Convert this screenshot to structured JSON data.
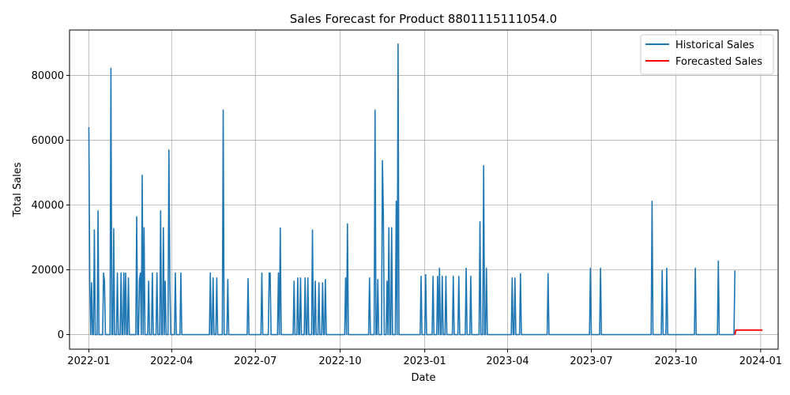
{
  "chart_data": {
    "type": "line",
    "title": "Sales Forecast for Product 8801115111054.0",
    "xlabel": "Date",
    "ylabel": "Total Sales",
    "x_range": [
      "2021-12-11",
      "2024-01-20"
    ],
    "ylim": [
      -4500,
      94000
    ],
    "x_ticks": [
      "2022-01",
      "2022-04",
      "2022-07",
      "2022-10",
      "2023-01",
      "2023-04",
      "2023-07",
      "2023-10",
      "2024-01"
    ],
    "y_ticks": [
      0,
      20000,
      40000,
      60000,
      80000
    ],
    "y_tick_labels": [
      "0",
      "20000",
      "40000",
      "60000",
      "80000"
    ],
    "grid": true,
    "legend_position": "top-right",
    "series": [
      {
        "name": "Historical Sales",
        "color": "#1f77b4",
        "spikes": [
          [
            "2022-01-01",
            64000
          ],
          [
            "2022-01-02",
            16000
          ],
          [
            "2022-01-04",
            16000
          ],
          [
            "2022-01-07",
            32300
          ],
          [
            "2022-01-11",
            38200
          ],
          [
            "2022-01-17",
            19000
          ],
          [
            "2022-01-18",
            16500
          ],
          [
            "2022-01-25",
            82200
          ],
          [
            "2022-01-28",
            32700
          ],
          [
            "2022-02-01",
            19000
          ],
          [
            "2022-02-05",
            19000
          ],
          [
            "2022-02-08",
            19000
          ],
          [
            "2022-02-10",
            19000
          ],
          [
            "2022-02-13",
            17500
          ],
          [
            "2022-02-22",
            36400
          ],
          [
            "2022-02-25",
            17000
          ],
          [
            "2022-02-26",
            19000
          ],
          [
            "2022-02-28",
            49200
          ],
          [
            "2022-03-02",
            33000
          ],
          [
            "2022-03-07",
            16500
          ],
          [
            "2022-03-11",
            19000
          ],
          [
            "2022-03-16",
            19000
          ],
          [
            "2022-03-20",
            38200
          ],
          [
            "2022-03-23",
            33000
          ],
          [
            "2022-03-25",
            16500
          ],
          [
            "2022-03-29",
            57000
          ],
          [
            "2022-03-30",
            16500
          ],
          [
            "2022-04-05",
            19000
          ],
          [
            "2022-04-11",
            19000
          ],
          [
            "2022-05-13",
            19000
          ],
          [
            "2022-05-16",
            17500
          ],
          [
            "2022-05-20",
            17500
          ],
          [
            "2022-05-27",
            69300
          ],
          [
            "2022-06-01",
            17000
          ],
          [
            "2022-06-23",
            17300
          ],
          [
            "2022-07-08",
            19000
          ],
          [
            "2022-07-16",
            19000
          ],
          [
            "2022-07-17",
            19000
          ],
          [
            "2022-07-26",
            19000
          ],
          [
            "2022-07-28",
            32900
          ],
          [
            "2022-08-12",
            16500
          ],
          [
            "2022-08-16",
            17500
          ],
          [
            "2022-08-19",
            17500
          ],
          [
            "2022-08-24",
            17500
          ],
          [
            "2022-08-27",
            17500
          ],
          [
            "2022-09-01",
            32300
          ],
          [
            "2022-09-04",
            16500
          ],
          [
            "2022-09-08",
            16000
          ],
          [
            "2022-09-12",
            16000
          ],
          [
            "2022-09-15",
            17000
          ],
          [
            "2022-10-07",
            17500
          ],
          [
            "2022-10-09",
            34200
          ],
          [
            "2022-11-02",
            17500
          ],
          [
            "2022-11-08",
            69300
          ],
          [
            "2022-11-11",
            17000
          ],
          [
            "2022-11-16",
            53700
          ],
          [
            "2022-11-17",
            38200
          ],
          [
            "2022-11-21",
            16500
          ],
          [
            "2022-11-23",
            33000
          ],
          [
            "2022-11-26",
            33000
          ],
          [
            "2022-12-01",
            41200
          ],
          [
            "2022-12-03",
            89700
          ],
          [
            "2022-12-28",
            18000
          ],
          [
            "2023-01-02",
            18500
          ],
          [
            "2023-01-10",
            18000
          ],
          [
            "2023-01-15",
            18000
          ],
          [
            "2023-01-17",
            20500
          ],
          [
            "2023-01-20",
            18000
          ],
          [
            "2023-01-24",
            18000
          ],
          [
            "2023-02-01",
            18000
          ],
          [
            "2023-02-07",
            18000
          ],
          [
            "2023-02-15",
            20500
          ],
          [
            "2023-02-20",
            18000
          ],
          [
            "2023-03-02",
            34800
          ],
          [
            "2023-03-06",
            52100
          ],
          [
            "2023-03-09",
            20500
          ],
          [
            "2023-04-06",
            17500
          ],
          [
            "2023-04-09",
            17500
          ],
          [
            "2023-04-15",
            18800
          ],
          [
            "2023-05-15",
            18800
          ],
          [
            "2023-06-30",
            20500
          ],
          [
            "2023-07-11",
            20500
          ],
          [
            "2023-09-05",
            41200
          ],
          [
            "2023-09-16",
            19800
          ],
          [
            "2023-09-21",
            20500
          ],
          [
            "2023-10-22",
            20500
          ],
          [
            "2023-11-16",
            22700
          ],
          [
            "2023-12-04",
            19800
          ]
        ],
        "end_date": "2023-12-04"
      },
      {
        "name": "Forecasted Sales",
        "color": "#ff0000",
        "x": [
          "2023-12-04",
          "2023-12-05",
          "2024-01-03"
        ],
        "values": [
          0,
          1400,
          1400
        ]
      }
    ]
  }
}
